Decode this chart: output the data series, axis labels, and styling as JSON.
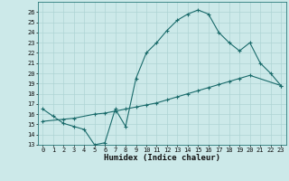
{
  "xlabel": "Humidex (Indice chaleur)",
  "ylabel": "",
  "bg_color": "#cce9e9",
  "line_color": "#1a6b6b",
  "xlim": [
    -0.5,
    23.5
  ],
  "ylim": [
    13,
    27
  ],
  "xticks": [
    0,
    1,
    2,
    3,
    4,
    5,
    6,
    7,
    8,
    9,
    10,
    11,
    12,
    13,
    14,
    15,
    16,
    17,
    18,
    19,
    20,
    21,
    22,
    23
  ],
  "yticks": [
    13,
    14,
    15,
    16,
    17,
    18,
    19,
    20,
    21,
    22,
    23,
    24,
    25,
    26
  ],
  "line1_x": [
    0,
    1,
    2,
    3,
    4,
    5,
    6,
    7,
    8,
    9,
    10,
    11,
    12,
    13,
    14,
    15,
    16,
    17,
    18,
    19,
    20,
    21,
    22,
    23
  ],
  "line1_y": [
    16.5,
    15.8,
    15.1,
    14.8,
    14.5,
    13.0,
    13.2,
    16.5,
    14.8,
    19.5,
    22.0,
    23.0,
    24.2,
    25.2,
    25.8,
    26.2,
    25.8,
    24.0,
    23.0,
    22.2,
    23.0,
    21.0,
    20.0,
    18.8
  ],
  "line2_x": [
    0,
    2,
    3,
    5,
    6,
    7,
    8,
    9,
    10,
    11,
    12,
    13,
    14,
    15,
    16,
    17,
    18,
    19,
    20,
    23
  ],
  "line2_y": [
    15.3,
    15.5,
    15.6,
    16.0,
    16.1,
    16.3,
    16.5,
    16.7,
    16.9,
    17.1,
    17.4,
    17.7,
    18.0,
    18.3,
    18.6,
    18.9,
    19.2,
    19.5,
    19.8,
    18.8
  ],
  "tick_fontsize": 5,
  "xlabel_fontsize": 6.5,
  "grid_color": "#aed4d4"
}
